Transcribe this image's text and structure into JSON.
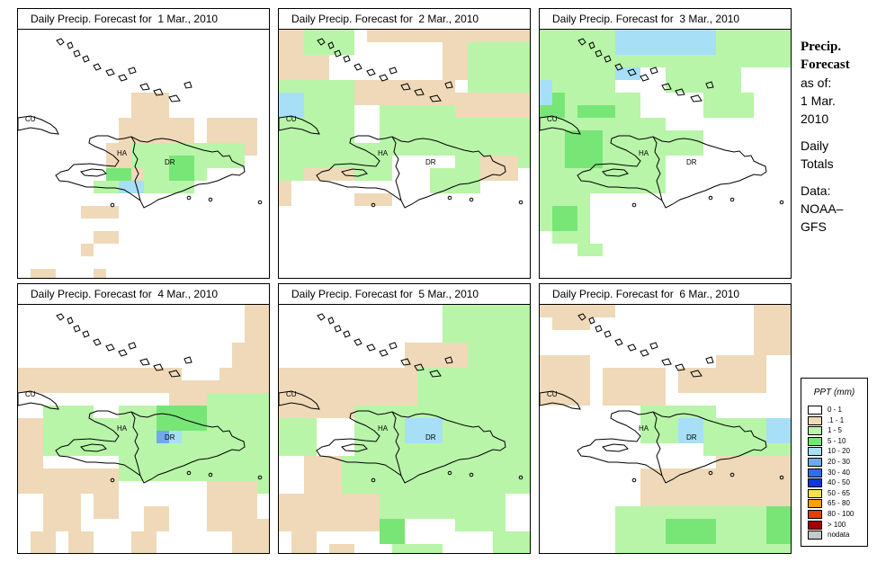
{
  "panels": [
    {
      "title": "Daily Precip. Forecast for  1 Mar., 2010"
    },
    {
      "title": "Daily Precip. Forecast for  2 Mar., 2010"
    },
    {
      "title": "Daily Precip. Forecast for  3 Mar., 2010"
    },
    {
      "title": "Daily Precip. Forecast for  4 Mar., 2010"
    },
    {
      "title": "Daily Precip. Forecast for  5 Mar., 2010"
    },
    {
      "title": "Daily Precip. Forecast for  6 Mar., 2010"
    }
  ],
  "country_labels": {
    "cu": "CU",
    "ha": "HA",
    "dr": "DR"
  },
  "side": {
    "title1": "Precip.",
    "title2": "Forecast",
    "asof": "as of:",
    "date1": "1 Mar.",
    "date2": "2010",
    "daily": "Daily",
    "totals": "Totals",
    "data": "Data:",
    "src1": "NOAA–",
    "src2": "GFS"
  },
  "legend": {
    "title": "PPT (mm)",
    "items": [
      {
        "label": "0 - 1",
        "color": "#ffffff"
      },
      {
        "label": ".1 - 1",
        "color": "#efd9b8"
      },
      {
        "label": "1 - 5",
        "color": "#b8f5a8"
      },
      {
        "label": "5 - 10",
        "color": "#77e677"
      },
      {
        "label": "10 - 20",
        "color": "#a7dff6"
      },
      {
        "label": "20 - 30",
        "color": "#6fa9ec"
      },
      {
        "label": "30 - 40",
        "color": "#2f6ee6"
      },
      {
        "label": "40 - 50",
        "color": "#0d39d6"
      },
      {
        "label": "50 - 65",
        "color": "#f7e050"
      },
      {
        "label": "65 - 80",
        "color": "#f7a000"
      },
      {
        "label": "80 - 100",
        "color": "#e04000"
      },
      {
        "label": "> 100",
        "color": "#a00000"
      },
      {
        "label": "nodata",
        "color": "#c8c8c8"
      }
    ]
  }
}
